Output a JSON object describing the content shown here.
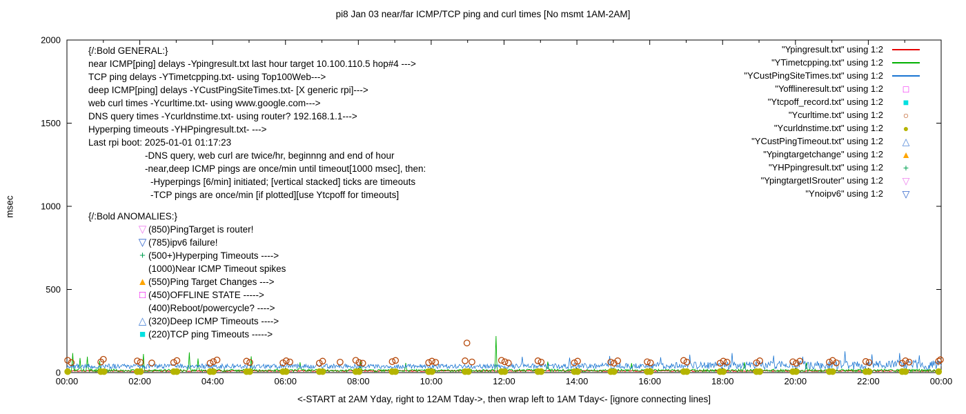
{
  "title": "pi8 Jan 03  near/far ICMP/TCP ping and curl times [No msmt 1AM-2AM]",
  "ylabel": "msec",
  "xlabel_note": "<-START at 2AM Yday, right to 12AM Tday->, then wrap left to 1AM Tday<- [ignore connecting lines]",
  "annotations": {
    "general_header": "{/:Bold GENERAL:}",
    "general_lines": [
      "near ICMP[ping] delays -Ypingresult.txt last hour target 10.100.110.5 hop#4 --->",
      "TCP ping delays -YTimetcpping.txt- using Top100Web--->",
      "deep ICMP[ping] delays -YCustPingSiteTimes.txt- [X generic rpi]--->",
      "web curl times -Ycurltime.txt- using www.google.com--->",
      "DNS query times -Ycurldnstime.txt- using router? 192.168.1.1--->",
      "Hyperping timeouts -YHPpingresult.txt- --->",
      "Last rpi boot: 2025-01-01 01:17:23"
    ],
    "indent_lines": [
      "-DNS query, web curl are twice/hr, beginnng and end of hour",
      "-near,deep ICMP pings are once/min until timeout[1000 msec], then:",
      "-Hyperpings [6/min] initiated; [vertical stacked] ticks are timeouts",
      "-TCP pings are once/min [if plotted][use Ytcpoff for timeouts]"
    ],
    "anomalies_header": "{/:Bold ANOMALIES:}",
    "anomalies": [
      {
        "marker": "triangle-down-open",
        "color": "#ee82ee",
        "label": "(850)PingTarget is router!"
      },
      {
        "marker": "triangle-down-open",
        "color": "#3366cc",
        "label": "(785)ipv6 failure!"
      },
      {
        "marker": "plus",
        "color": "#00a050",
        "label": "(500+)Hyperping Timeouts ---->"
      },
      {
        "marker": "none",
        "color": "",
        "label": "(1000)Near ICMP Timeout spikes"
      },
      {
        "marker": "triangle-up-filled",
        "color": "#ffa500",
        "label": "(550)Ping Target Changes --->"
      },
      {
        "marker": "square-open",
        "color": "#f000f0",
        "label": "(450)OFFLINE STATE ----->"
      },
      {
        "marker": "none",
        "color": "",
        "label": "(400)Reboot/powercycle? ---->"
      },
      {
        "marker": "triangle-up-open",
        "color": "#4e86d8",
        "label": "(320)Deep ICMP Timeouts ---->"
      },
      {
        "marker": "square-filled",
        "color": "#00e0e0",
        "label": "(220)TCP ping Timeouts ----->"
      }
    ]
  },
  "legend": [
    {
      "label": "\"Ypingresult.txt\" using 1:2",
      "marker": "line",
      "color": "#e60000"
    },
    {
      "label": "\"YTimetcpping.txt\" using 1:2",
      "marker": "line",
      "color": "#00b000"
    },
    {
      "label": "\"YCustPingSiteTimes.txt\" using 1:2",
      "marker": "line",
      "color": "#1874d2"
    },
    {
      "label": "\"Yofflineresult.txt\" using 1:2",
      "marker": "square-open",
      "color": "#f000f0"
    },
    {
      "label": "\"Ytcpoff_record.txt\" using 1:2",
      "marker": "square-filled",
      "color": "#00e0e0"
    },
    {
      "label": "\"Ycurltime.txt\" using 1:2",
      "marker": "circle-open",
      "color": "#b54708"
    },
    {
      "label": "\"Ycurldnstime.txt\" using 1:2",
      "marker": "circle-filled",
      "color": "#b5b400"
    },
    {
      "label": "\"YCustPingTimeout.txt\" using 1:2",
      "marker": "triangle-up-open",
      "color": "#4e86d8"
    },
    {
      "label": "\"Ypingtargetchange\" using 1:2",
      "marker": "triangle-up-filled",
      "color": "#ffa500"
    },
    {
      "label": "\"YHPpingresult.txt\" using 1:2",
      "marker": "plus",
      "color": "#00a050"
    },
    {
      "label": "\"YpingtargetISrouter\" using 1:2",
      "marker": "triangle-down-open",
      "color": "#ee82ee"
    },
    {
      "label": "\"Ynoipv6\" using 1:2",
      "marker": "triangle-down-open",
      "color": "#3366cc"
    }
  ],
  "chart_data": {
    "type": "line",
    "title": "pi8 Jan 03  near/far ICMP/TCP ping and curl times [No msmt 1AM-2AM]",
    "xlabel": "<-START at 2AM Yday, right to 12AM Tday->, then wrap left to 1AM Tday<- [ignore connecting lines]",
    "ylabel": "msec",
    "ylim": [
      0,
      2000
    ],
    "xlim_hours": [
      0,
      24
    ],
    "y_ticks": [
      0,
      500,
      1000,
      1500,
      2000
    ],
    "x_tick_labels": [
      "00:00",
      "02:00",
      "04:00",
      "06:00",
      "08:00",
      "10:00",
      "12:00",
      "14:00",
      "16:00",
      "18:00",
      "20:00",
      "22:00",
      "00:00"
    ],
    "series": [
      {
        "name": "Ypingresult.txt",
        "type": "line",
        "color": "#e60000",
        "width": 1.0,
        "base": 10,
        "noise": 3.5,
        "spikes": []
      },
      {
        "name": "YTimetcpping.txt",
        "type": "line",
        "color": "#00b000",
        "width": 0.9,
        "base": 13,
        "noise": 8,
        "spikes": [
          [
            0.15,
            118
          ],
          [
            0.35,
            88
          ],
          [
            0.55,
            96
          ],
          [
            0.9,
            70
          ],
          [
            2.1,
            112
          ],
          [
            3.35,
            122
          ],
          [
            3.6,
            85
          ],
          [
            5.05,
            98
          ],
          [
            6.4,
            62
          ],
          [
            8.05,
            76
          ],
          [
            9.3,
            58
          ],
          [
            11.78,
            220
          ],
          [
            13.2,
            66
          ],
          [
            15.5,
            57
          ],
          [
            18.6,
            62
          ],
          [
            20.3,
            60
          ]
        ]
      },
      {
        "name": "YCustPingSiteTimes.txt",
        "type": "line",
        "color": "#1874d2",
        "width": 0.8,
        "base": 38,
        "noise": 14,
        "noise_late": 16,
        "late_bias": 10,
        "spikes": [
          [
            12.5,
            95
          ],
          [
            13.8,
            90
          ],
          [
            14.9,
            100
          ],
          [
            16.3,
            92
          ],
          [
            17.1,
            108
          ],
          [
            18.25,
            118
          ],
          [
            19.4,
            102
          ],
          [
            20.2,
            96
          ],
          [
            21.35,
            128
          ],
          [
            22.1,
            110
          ],
          [
            22.85,
            118
          ],
          [
            23.4,
            104
          ]
        ]
      },
      {
        "name": "Ycurltime.txt",
        "type": "points",
        "marker": "circle-open",
        "color": "#b54708",
        "size": 4.2,
        "points": [
          [
            0.02,
            74
          ],
          [
            0.12,
            60
          ],
          [
            0.93,
            64
          ],
          [
            1.0,
            80
          ],
          [
            1.93,
            70
          ],
          [
            2.02,
            62
          ],
          [
            2.33,
            58
          ],
          [
            2.93,
            61
          ],
          [
            3.02,
            72
          ],
          [
            3.93,
            57
          ],
          [
            4.02,
            66
          ],
          [
            4.12,
            76
          ],
          [
            4.93,
            69
          ],
          [
            5.02,
            61
          ],
          [
            5.93,
            59
          ],
          [
            6.02,
            71
          ],
          [
            6.12,
            64
          ],
          [
            6.93,
            57
          ],
          [
            7.02,
            69
          ],
          [
            7.5,
            63
          ],
          [
            7.93,
            74
          ],
          [
            8.02,
            61
          ],
          [
            8.12,
            57
          ],
          [
            8.93,
            66
          ],
          [
            9.02,
            73
          ],
          [
            9.93,
            60
          ],
          [
            10.02,
            69
          ],
          [
            10.12,
            62
          ],
          [
            10.93,
            71
          ],
          [
            10.98,
            178
          ],
          [
            11.12,
            64
          ],
          [
            11.93,
            74
          ],
          [
            12.02,
            65
          ],
          [
            12.12,
            58
          ],
          [
            12.93,
            71
          ],
          [
            13.02,
            63
          ],
          [
            13.93,
            59
          ],
          [
            14.02,
            69
          ],
          [
            14.93,
            63
          ],
          [
            15.02,
            57
          ],
          [
            15.12,
            71
          ],
          [
            15.93,
            65
          ],
          [
            16.02,
            59
          ],
          [
            16.93,
            73
          ],
          [
            17.02,
            63
          ],
          [
            17.93,
            57
          ],
          [
            18.02,
            69
          ],
          [
            18.12,
            63
          ],
          [
            18.93,
            59
          ],
          [
            19.02,
            71
          ],
          [
            19.93,
            65
          ],
          [
            20.02,
            57
          ],
          [
            20.12,
            69
          ],
          [
            20.93,
            63
          ],
          [
            21.02,
            73
          ],
          [
            21.12,
            59
          ],
          [
            21.93,
            67
          ],
          [
            22.02,
            61
          ],
          [
            22.93,
            57
          ],
          [
            23.02,
            71
          ],
          [
            23.12,
            63
          ],
          [
            23.93,
            69
          ],
          [
            23.98,
            77
          ]
        ]
      },
      {
        "name": "Ycurldnstime.txt",
        "type": "points",
        "marker": "circle-filled",
        "color": "#b5b400",
        "size": 4.8,
        "schedule": {
          "hours": [
            0,
            24
          ],
          "offsets": [
            -0.07,
            0.02
          ],
          "value": 6
        }
      }
    ]
  }
}
